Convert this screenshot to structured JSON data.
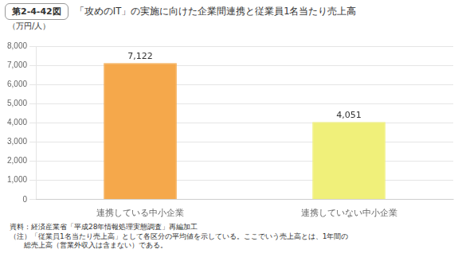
{
  "chart_data": {
    "type": "bar",
    "title": "「攻めのIT」の実施に向けた企業間連携と従業員1名当たり売上高",
    "categories": [
      "連携している中小企業",
      "連携していない中小企業"
    ],
    "values": [
      7122,
      4051
    ],
    "value_labels": [
      "7,122",
      "4,051"
    ],
    "data_labels": true,
    "colors": [
      "#F5A84B",
      "#F0F07A"
    ],
    "ylabel": "（万円/人）",
    "ylim": [
      0,
      8000
    ],
    "yticks": [
      0,
      {
        "value": 1000,
        "label": "1,000"
      },
      {
        "value": 2000,
        "label": "2,000"
      },
      {
        "value": 3000,
        "label": "3,000"
      },
      {
        "value": 4000,
        "label": "4,000"
      },
      {
        "value": 5000,
        "label": "5,000"
      },
      {
        "value": 6000,
        "label": "6,000"
      },
      {
        "value": 7000,
        "label": "7,000"
      },
      {
        "value": 8000,
        "label": "8,000"
      }
    ],
    "grid": true,
    "annotations": [
      "第2-4-42図",
      "資料：経済産業省「平成28年情報処理実態調査」再編加工",
      "（注）「従業員1名当たり売上高」として各区分の平均値を示している。ここでいう売上高とは、1年間の",
      "　　総売上高（営業外収入は含まない）である。"
    ]
  }
}
